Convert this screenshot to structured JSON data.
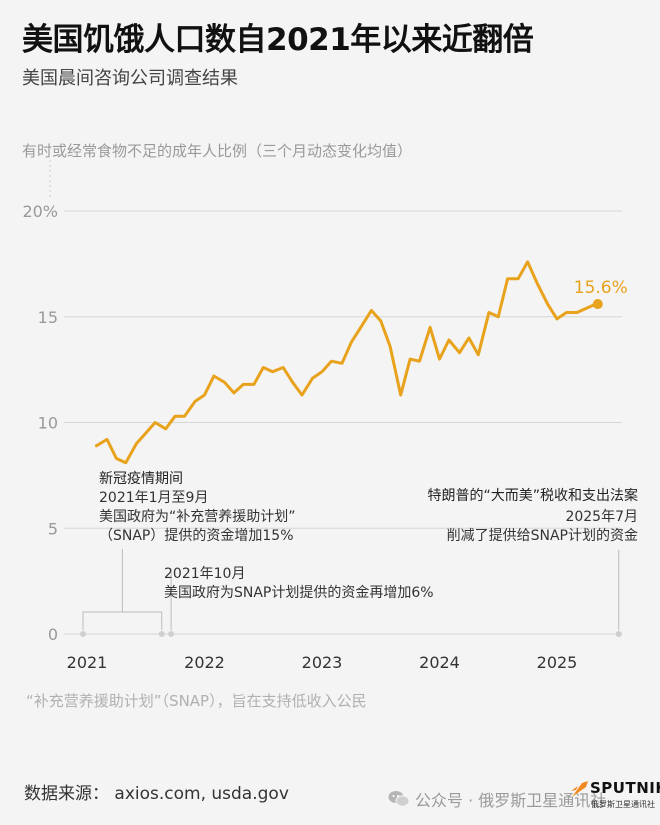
{
  "title": "美国饥饿人口数自2021年以来近翻倍",
  "subtitle": "美国晨间咨询公司调查结果",
  "axis_caption": "有时或经常食物不足的成年人比例（三个月动态变化均值）",
  "footer_note": "“补充营养援助计划”（SNAP），旨在支持低收入公民",
  "source": "数据来源： axios.com, usda.gov",
  "wechat": {
    "icon": "wechat-icon",
    "text": "公众号 · 俄罗斯卫星通讯社"
  },
  "logo": {
    "word": "SPUTNIK",
    "sub": "俄罗斯卫星通讯社"
  },
  "annotations": {
    "covid": {
      "title": "新冠疫情期间",
      "line1": "2021年1月至9月",
      "line2": "美国政府为“补充营养援助计划”",
      "line3": "（SNAP）提供的资金增加15%"
    },
    "oct2021": {
      "line1": "2021年10月",
      "line2": "美国政府为SNAP计划提供的资金再增加6%"
    },
    "trump": {
      "title": "特朗普的“大而美”税收和支出法案",
      "line1": "2025年7月",
      "line2": "削减了提供给SNAP计划的资金"
    }
  },
  "chart_data": {
    "type": "line",
    "title": "美国饥饿人口数自2021年以来近翻倍",
    "ylabel": "有时或经常食物不足的成年人比例（三个月动态变化均值）",
    "ylim": [
      0,
      20
    ],
    "yticks": [
      0,
      5,
      10,
      15,
      20
    ],
    "ytick_labels": [
      "0",
      "5",
      "10",
      "15",
      "20%"
    ],
    "xticks": [
      2021,
      2022,
      2023,
      2024,
      2025
    ],
    "xlim": [
      2021,
      2025.55
    ],
    "grid": true,
    "color": "#e8a21c",
    "last_value_label": "15.6%",
    "x": [
      2021.08,
      2021.17,
      2021.25,
      2021.33,
      2021.42,
      2021.5,
      2021.58,
      2021.67,
      2021.75,
      2021.83,
      2021.92,
      2022.0,
      2022.08,
      2022.17,
      2022.25,
      2022.33,
      2022.42,
      2022.5,
      2022.58,
      2022.67,
      2022.75,
      2022.83,
      2022.92,
      2023.0,
      2023.08,
      2023.17,
      2023.25,
      2023.33,
      2023.42,
      2023.5,
      2023.58,
      2023.67,
      2023.75,
      2023.83,
      2023.92,
      2024.0,
      2024.08,
      2024.17,
      2024.25,
      2024.33,
      2024.42,
      2024.5,
      2024.58,
      2024.67,
      2024.75,
      2024.83,
      2024.92,
      2025.0,
      2025.08,
      2025.17,
      2025.25,
      2025.33
    ],
    "y": [
      8.9,
      9.2,
      8.3,
      8.1,
      9.0,
      9.5,
      10.0,
      9.7,
      10.3,
      10.3,
      11.0,
      11.3,
      12.2,
      11.9,
      11.4,
      11.8,
      11.8,
      12.6,
      12.4,
      12.6,
      11.9,
      11.3,
      12.1,
      12.4,
      12.9,
      12.8,
      13.8,
      14.5,
      15.3,
      14.8,
      13.6,
      11.3,
      13.0,
      12.9,
      14.5,
      13.0,
      13.9,
      13.3,
      14.0,
      13.2,
      15.2,
      15.0,
      16.8,
      16.8,
      17.6,
      16.6,
      15.6,
      14.9,
      15.2,
      15.2,
      15.4,
      15.6
    ]
  },
  "markers": {
    "bracket_start": 2021.0,
    "bracket_end": 2021.67,
    "oct_point": 2021.75,
    "trump_point": 2025.5
  }
}
